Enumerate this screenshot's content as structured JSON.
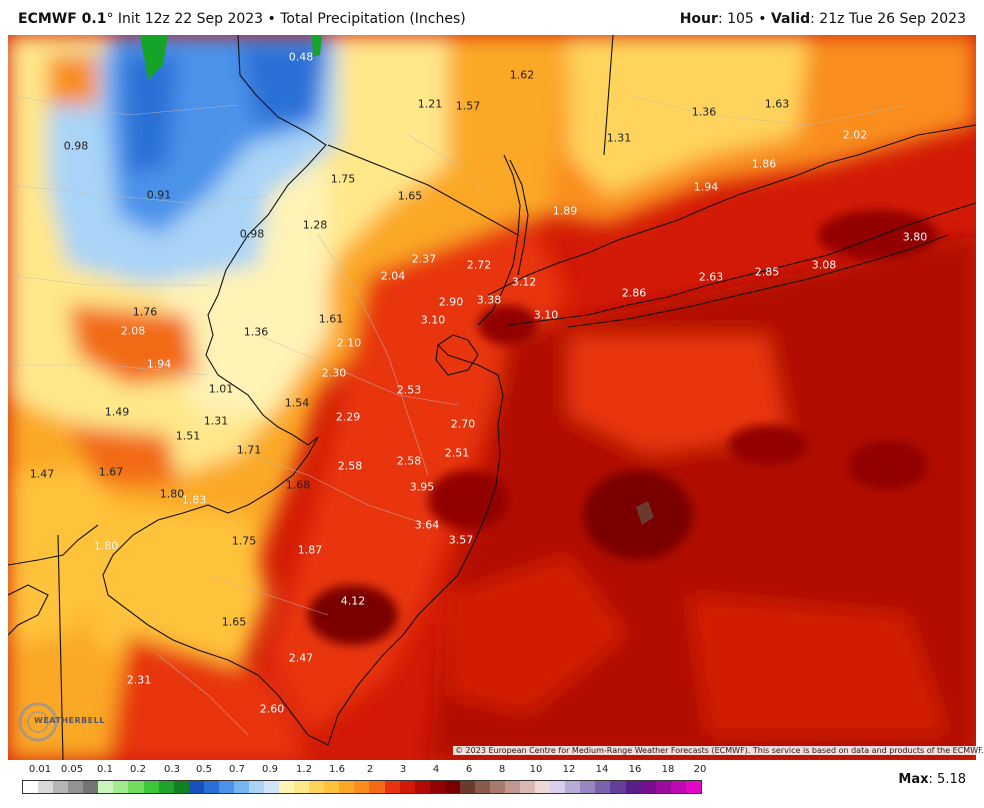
{
  "header": {
    "model": "ECMWF 0.1",
    "degree": "°",
    "init": " Init 12z 22 Sep 2023 • Total Precipitation (Inches)",
    "hour_label": "Hour",
    "hour_value": ": 105 • ",
    "valid_label": "Valid",
    "valid_value": ": 21z Tue 26 Sep 2023"
  },
  "copyright": "© 2023 European Centre for Medium-Range Weather Forecasts (ECMWF). This service is based on data and products of the ECMWF.",
  "logo": "WEATHERBELL",
  "max": {
    "label": "Max",
    "value": ": 5.18"
  },
  "colors": {
    "light_yellow": "#fde9a5",
    "orange": "#fba827",
    "red": "#e8340e",
    "dark_red": "#b10a03",
    "maroon": "#7a0000",
    "blue": "#2a6fd6",
    "light_blue": "#a9d4f7",
    "green": "#16a32a"
  },
  "scale": {
    "labels": [
      "0.01",
      "0.05",
      "0.1",
      "0.2",
      "0.3",
      "0.5",
      "0.7",
      "0.9",
      "1.2",
      "1.6",
      "2",
      "3",
      "4",
      "6",
      "8",
      "10",
      "12",
      "14",
      "16",
      "18",
      "20"
    ],
    "colors": [
      "#ffffff",
      "#d9d9d9",
      "#b5b5b5",
      "#939393",
      "#747474",
      "#c9f5bd",
      "#a0eb8f",
      "#6fdc5d",
      "#3ec63a",
      "#1ea42a",
      "#118220",
      "#1a4fc0",
      "#2a6fd6",
      "#4b93ea",
      "#76b5f4",
      "#a9d4f7",
      "#cfe6fa",
      "#fff3b5",
      "#ffe78a",
      "#ffd45c",
      "#ffc23a",
      "#fba827",
      "#f98e1e",
      "#f26a16",
      "#e8340e",
      "#d21a06",
      "#b10a03",
      "#930202",
      "#7a0000",
      "#6a3a2e",
      "#8a5a4c",
      "#a67a6c",
      "#c09890",
      "#d9b8b2",
      "#eed8d6",
      "#d8d0e8",
      "#b8acd6",
      "#9886c0",
      "#7c64ad",
      "#663f9a",
      "#5b1f8a",
      "#7a0d8e",
      "#9b0b9e",
      "#bd0ab3",
      "#e00ac6"
    ]
  },
  "values": [
    {
      "v": "0.48",
      "dark": false
    },
    {
      "v": "1.62",
      "dark": true
    },
    {
      "v": "1.21",
      "dark": true
    },
    {
      "v": "1.57",
      "dark": true
    },
    {
      "v": "1.36",
      "dark": true
    },
    {
      "v": "1.63",
      "dark": true
    },
    {
      "v": "1.31",
      "dark": true
    },
    {
      "v": "2.02",
      "dark": false
    },
    {
      "v": "1.86",
      "dark": false
    },
    {
      "v": "1.94",
      "dark": false
    },
    {
      "v": "0.98",
      "dark": true
    },
    {
      "v": "0.91",
      "dark": true
    },
    {
      "v": "1.75",
      "dark": true
    },
    {
      "v": "1.65",
      "dark": true
    },
    {
      "v": "1.89",
      "dark": false
    },
    {
      "v": "1.28",
      "dark": true
    },
    {
      "v": "0.98",
      "dark": true
    },
    {
      "v": "3.80",
      "dark": false
    },
    {
      "v": "2.37",
      "dark": false
    },
    {
      "v": "2.72",
      "dark": false
    },
    {
      "v": "2.04",
      "dark": false
    },
    {
      "v": "3.12",
      "dark": false
    },
    {
      "v": "2.63",
      "dark": false
    },
    {
      "v": "2.85",
      "dark": false
    },
    {
      "v": "3.08",
      "dark": false
    },
    {
      "v": "2.86",
      "dark": false
    },
    {
      "v": "2.90",
      "dark": false
    },
    {
      "v": "3.38",
      "dark": false
    },
    {
      "v": "1.76",
      "dark": true
    },
    {
      "v": "2.08",
      "dark": false
    },
    {
      "v": "1.61",
      "dark": true
    },
    {
      "v": "3.10",
      "dark": false
    },
    {
      "v": "3.10",
      "dark": false
    },
    {
      "v": "1.36",
      "dark": true
    },
    {
      "v": "2.10",
      "dark": false
    },
    {
      "v": "1.94",
      "dark": false
    },
    {
      "v": "2.30",
      "dark": false
    },
    {
      "v": "1.01",
      "dark": true
    },
    {
      "v": "2.53",
      "dark": false
    },
    {
      "v": "1.49",
      "dark": true
    },
    {
      "v": "1.54",
      "dark": true
    },
    {
      "v": "1.31",
      "dark": true
    },
    {
      "v": "2.29",
      "dark": false
    },
    {
      "v": "2.70",
      "dark": false
    },
    {
      "v": "1.51",
      "dark": true
    },
    {
      "v": "1.71",
      "dark": true
    },
    {
      "v": "2.58",
      "dark": false
    },
    {
      "v": "1.47",
      "dark": true
    },
    {
      "v": "1.67",
      "dark": true
    },
    {
      "v": "2.58",
      "dark": false
    },
    {
      "v": "2.51",
      "dark": false
    },
    {
      "v": "3.95",
      "dark": false
    },
    {
      "v": "1.68",
      "dark": true
    },
    {
      "v": "1.80",
      "dark": true
    },
    {
      "v": "1.83",
      "dark": false
    },
    {
      "v": "3.64",
      "dark": false
    },
    {
      "v": "3.57",
      "dark": false
    },
    {
      "v": "1.80",
      "dark": false
    },
    {
      "v": "1.75",
      "dark": true
    },
    {
      "v": "1.87",
      "dark": false
    },
    {
      "v": "4.12",
      "dark": false
    },
    {
      "v": "1.65",
      "dark": true
    },
    {
      "v": "2.47",
      "dark": false
    },
    {
      "v": "2.31",
      "dark": false
    },
    {
      "v": "2.60",
      "dark": false
    }
  ]
}
